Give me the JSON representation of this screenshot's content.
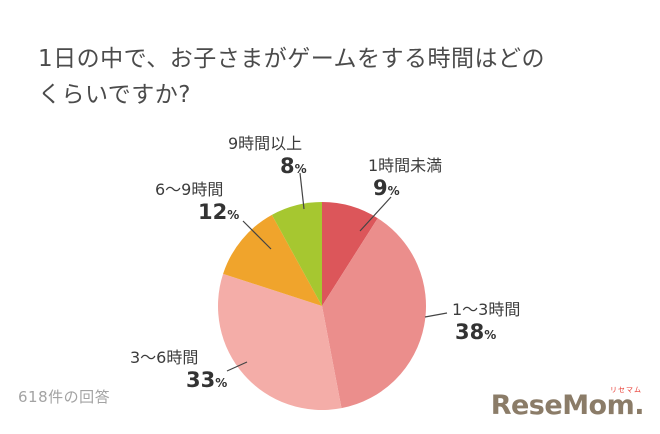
{
  "title": {
    "line1": "1日の中で、お子さまがゲームをする時間はどの",
    "line2": "くらいですか?"
  },
  "footer": {
    "response_count": "618件の回答"
  },
  "logo": {
    "text": "ReseMom.",
    "ruby": "リセマム"
  },
  "chart_data": {
    "type": "pie",
    "title": "1日の中で、お子さまがゲームをする時間はどのくらいですか?",
    "start_angle_deg": -90,
    "direction": "clockwise",
    "unit": "%",
    "legend_position": "outside-labels",
    "slices": [
      {
        "label": "1時間未満",
        "value": 9,
        "percent": "9",
        "color": "#dc565a"
      },
      {
        "label": "1〜3時間",
        "value": 38,
        "percent": "38",
        "color": "#eb8e8c"
      },
      {
        "label": "3〜6時間",
        "value": 33,
        "percent": "33",
        "color": "#f4ada8"
      },
      {
        "label": "6〜9時間",
        "value": 12,
        "percent": "12",
        "color": "#f0a42c"
      },
      {
        "label": "9時間以上",
        "value": 8,
        "percent": "8",
        "color": "#a6c730"
      }
    ]
  }
}
